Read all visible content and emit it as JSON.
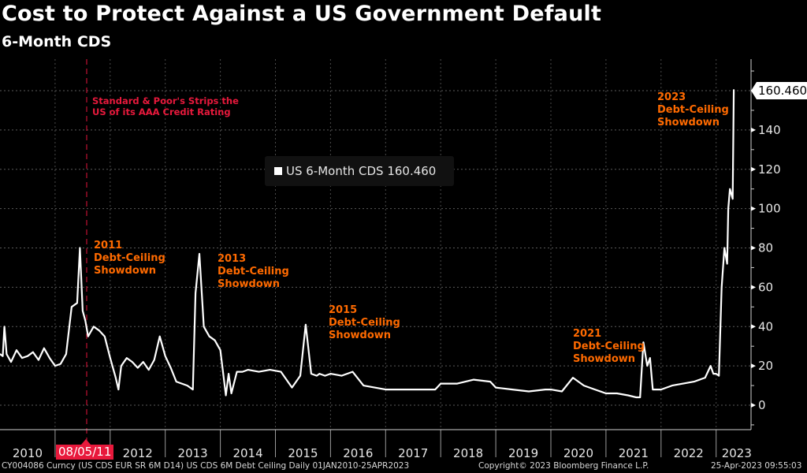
{
  "header": {
    "title": "Cost to Protect Against a US Government Default",
    "subtitle": "6-Month CDS"
  },
  "legend": {
    "label": "US 6-Month CDS 160.460"
  },
  "last_value_tag": "160.460",
  "event_marker": {
    "date_label": "08/05/11",
    "annotation_line1": "Standard & Poor's Strips the",
    "annotation_line2": "US of its AAA Credit Rating"
  },
  "annotations": [
    {
      "year": "2011",
      "line2": "Debt-Ceiling",
      "line3": "Showdown"
    },
    {
      "year": "2013",
      "line2": "Debt-Ceiling",
      "line3": "Showdown"
    },
    {
      "year": "2015",
      "line2": "Debt-Ceiling",
      "line3": "Showdown"
    },
    {
      "year": "2021",
      "line2": "Debt-Ceiling",
      "line3": "Showdown"
    },
    {
      "year": "2023",
      "line2": "Debt-Ceiling",
      "line3": "Showdown"
    }
  ],
  "footer": {
    "left": "CY004086 Curncy (US CDS EUR SR 6M D14) US CDS 6M Debt Ceiling  Daily 01JAN2010-25APR2023",
    "center": "Copyright© 2023 Bloomberg Finance L.P.",
    "right": "25-Apr-2023 09:55:03"
  },
  "colors": {
    "background": "#000000",
    "line": "#ffffff",
    "annotation": "#ff6a00",
    "event": "#e8193c",
    "grid": "#555555"
  },
  "chart_data": {
    "type": "line",
    "title": "Cost to Protect Against a US Government Default",
    "subtitle": "6-Month CDS",
    "xlabel": "",
    "ylabel": "",
    "ylim": [
      -12,
      175
    ],
    "xlim": [
      2010.0,
      2023.62
    ],
    "yticks": [
      0,
      20,
      40,
      60,
      80,
      100,
      120,
      140
    ],
    "ytick_labels": [
      "0",
      "20",
      "40",
      "60",
      "80",
      "100",
      "120",
      "140"
    ],
    "xtick_labels": [
      "2010",
      "2011",
      "2012",
      "2013",
      "2014",
      "2015",
      "2016",
      "2017",
      "2018",
      "2019",
      "2020",
      "2021",
      "2022",
      "2023"
    ],
    "grid": true,
    "legend_position": "top-center",
    "series": [
      {
        "name": "US 6-Month CDS",
        "last_value": 160.46,
        "x": [
          2010.0,
          2010.05,
          2010.08,
          2010.12,
          2010.2,
          2010.3,
          2010.4,
          2010.5,
          2010.6,
          2010.7,
          2010.8,
          2010.9,
          2011.0,
          2011.1,
          2011.2,
          2011.3,
          2011.4,
          2011.45,
          2011.5,
          2011.55,
          2011.6,
          2011.7,
          2011.8,
          2011.9,
          2012.0,
          2012.1,
          2012.15,
          2012.2,
          2012.3,
          2012.4,
          2012.5,
          2012.6,
          2012.7,
          2012.8,
          2012.9,
          2013.0,
          2013.1,
          2013.2,
          2013.4,
          2013.5,
          2013.55,
          2013.62,
          2013.7,
          2013.8,
          2013.9,
          2014.0,
          2014.1,
          2014.15,
          2014.2,
          2014.3,
          2014.4,
          2014.5,
          2014.7,
          2014.9,
          2015.1,
          2015.3,
          2015.45,
          2015.55,
          2015.65,
          2015.75,
          2015.8,
          2015.9,
          2016.0,
          2016.2,
          2016.4,
          2016.6,
          2016.8,
          2017.0,
          2017.3,
          2017.6,
          2017.9,
          2018.0,
          2018.3,
          2018.6,
          2018.9,
          2019.0,
          2019.3,
          2019.6,
          2019.9,
          2020.0,
          2020.2,
          2020.4,
          2020.6,
          2020.8,
          2021.0,
          2021.2,
          2021.4,
          2021.55,
          2021.62,
          2021.68,
          2021.75,
          2021.8,
          2021.85,
          2021.9,
          2022.0,
          2022.2,
          2022.4,
          2022.6,
          2022.8,
          2022.9,
          2022.95,
          2023.0,
          2023.05,
          2023.1,
          2023.15,
          2023.2,
          2023.22,
          2023.25,
          2023.3,
          2023.32
        ],
        "values": [
          26,
          25,
          40,
          26,
          22,
          28,
          24,
          25,
          27,
          23,
          29,
          24,
          20,
          21,
          26,
          50,
          52,
          80,
          48,
          43,
          35,
          40,
          38,
          35,
          24,
          14,
          8,
          20,
          24,
          22,
          19,
          22,
          18,
          23,
          35,
          25,
          19,
          12,
          10,
          8,
          57,
          77,
          40,
          35,
          33,
          28,
          5,
          16,
          6,
          17,
          17,
          18,
          17,
          18,
          17,
          9,
          15,
          41,
          16,
          15,
          16,
          15,
          16,
          15,
          17,
          10,
          9,
          8,
          8,
          8,
          8,
          11,
          11,
          13,
          12,
          9,
          8,
          7,
          8,
          8,
          7,
          14,
          10,
          8,
          6,
          6,
          5,
          4,
          4,
          32,
          20,
          24,
          8,
          8,
          8,
          10,
          11,
          12,
          14,
          20,
          16,
          16,
          15,
          60,
          80,
          72,
          100,
          110,
          105,
          160.46
        ]
      }
    ],
    "annotations": [
      {
        "x": 2011.6,
        "text": "Standard & Poor's Strips the US of its AAA Credit Rating",
        "date": "08/05/11",
        "type": "vertical-line"
      },
      {
        "x": 2011.45,
        "text": "2011 Debt-Ceiling Showdown"
      },
      {
        "x": 2013.62,
        "text": "2013 Debt-Ceiling Showdown"
      },
      {
        "x": 2015.55,
        "text": "2015 Debt-Ceiling Showdown"
      },
      {
        "x": 2021.68,
        "text": "2021 Debt-Ceiling Showdown"
      },
      {
        "x": 2023.32,
        "text": "2023 Debt-Ceiling Showdown"
      }
    ]
  }
}
